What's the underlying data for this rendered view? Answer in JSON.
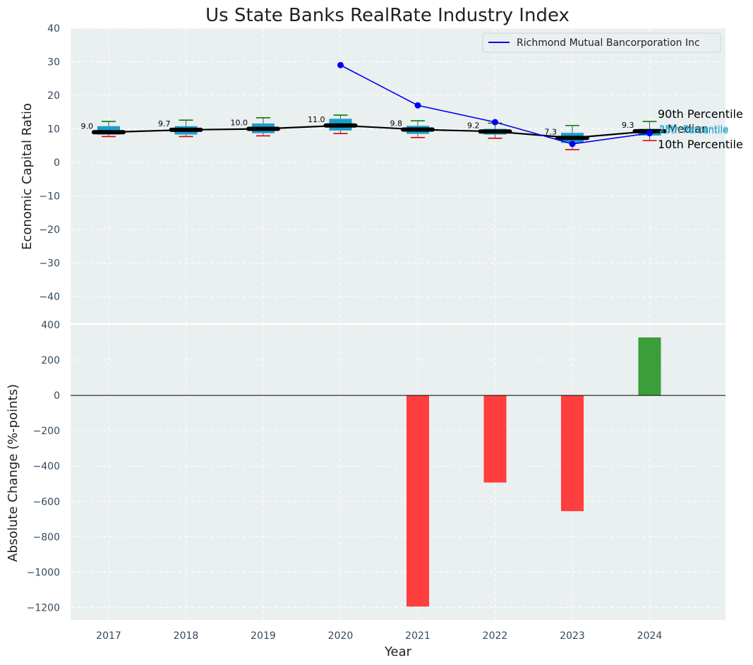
{
  "chart_data": {
    "title": "Us State Banks RealRate Industry Index",
    "xlabel": "Year",
    "years": [
      "2017",
      "2018",
      "2019",
      "2020",
      "2021",
      "2022",
      "2023",
      "2024"
    ],
    "top": {
      "type": "box",
      "ylabel": "Economic Capital Ratio",
      "ylim": [
        -48,
        40
      ],
      "yticks": [
        40,
        30,
        20,
        10,
        0,
        -10,
        -20,
        -30,
        -40
      ],
      "ytick_labels": [
        "40",
        "30",
        "20",
        "10",
        "0",
        "−10",
        "−20",
        "−30",
        "−40"
      ],
      "median": [
        9.0,
        9.7,
        10.0,
        11.0,
        9.8,
        9.2,
        7.3,
        9.3
      ],
      "median_labels": [
        "9.0",
        "9.7",
        "10.0",
        "11.0",
        "9.8",
        "9.2",
        "7.3",
        "9.3"
      ],
      "q1": [
        8.3,
        8.3,
        8.7,
        9.5,
        8.5,
        8.3,
        5.8,
        8.0
      ],
      "q3": [
        10.8,
        10.8,
        11.6,
        13.0,
        10.9,
        10.0,
        8.8,
        10.0
      ],
      "p10": [
        7.7,
        7.7,
        7.9,
        8.6,
        7.4,
        7.2,
        3.8,
        6.5
      ],
      "p90": [
        12.2,
        12.6,
        13.3,
        14.1,
        12.4,
        11.7,
        11.0,
        12.2
      ],
      "company": {
        "name": "Richmond Mutual Bancorporation Inc",
        "years": [
          "2020",
          "2021",
          "2022",
          "2023",
          "2024"
        ],
        "values": [
          29.0,
          17.0,
          12.0,
          5.5,
          8.7
        ]
      },
      "annotations": {
        "p90": "90th Percentile",
        "median": "Median",
        "p10": "10th Percentile",
        "overlap": "25th Percentile"
      }
    },
    "bottom": {
      "type": "bar",
      "ylabel": "Absolute Change (%-points)",
      "ylim": [
        -1270,
        400
      ],
      "yticks": [
        400,
        200,
        0,
        -200,
        -400,
        -600,
        -800,
        -1000,
        -1200
      ],
      "ytick_labels": [
        "400",
        "200",
        "0",
        "−200",
        "−400",
        "−600",
        "−800",
        "−1000",
        "−1200"
      ],
      "years": [
        "2021",
        "2022",
        "2023",
        "2024"
      ],
      "values": [
        -1195,
        -493,
        -655,
        328
      ]
    },
    "colors": {
      "panel": "#eaeff0",
      "box": "#1a9fcc",
      "median_line": "#000000",
      "company": "#0000ee",
      "whisker_top": "#008000",
      "whisker_bottom": "#dd0000",
      "bar_pos": "#3a9e3a",
      "bar_neg": "#ff3e3e"
    }
  }
}
